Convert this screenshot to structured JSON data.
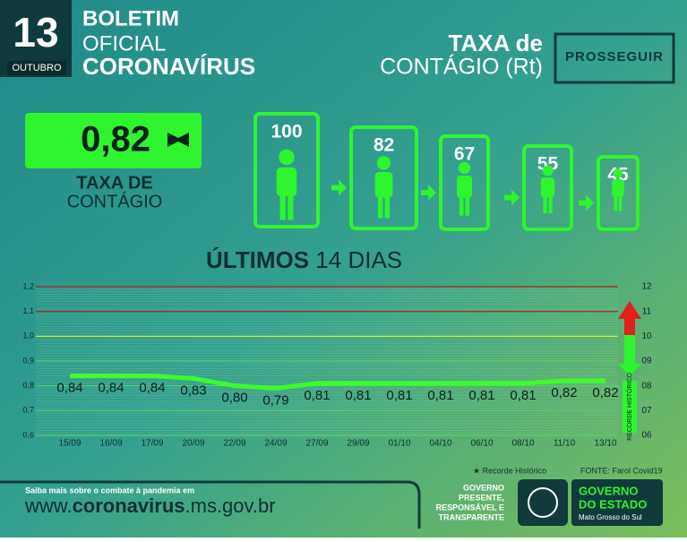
{
  "header": {
    "day": "13",
    "month": "OUTUBRO",
    "line1": "BOLETIM",
    "line2": "OFICIAL",
    "line3": "CORONAVÍRUS",
    "topic1": "TAXA de",
    "topic2": "CONTÁGIO (Rt)",
    "brand": "PROSSEGUIR"
  },
  "rate": {
    "value": "0,82",
    "label1": "TAXA DE",
    "label2": "CONTÁGIO"
  },
  "chain": [
    "100",
    "82",
    "67",
    "55",
    "45"
  ],
  "chart_data": {
    "type": "line",
    "title_bold": "ÚLTIMOS",
    "title_rest": "14 DIAS",
    "categories": [
      "15/09",
      "16/09",
      "17/09",
      "20/09",
      "22/09",
      "24/09",
      "27/09",
      "29/09",
      "01/10",
      "04/10",
      "06/10",
      "08/10",
      "11/10",
      "13/10"
    ],
    "series": [
      {
        "name": "Rt",
        "color": "#3dfc2a",
        "values": [
          0.84,
          0.84,
          0.84,
          0.83,
          0.8,
          0.79,
          0.81,
          0.81,
          0.81,
          0.81,
          0.81,
          0.81,
          0.82,
          0.82
        ],
        "value_labels": [
          "0,84",
          "0,84",
          "0,84",
          "0,83",
          "0,80",
          "0,79",
          "0,81",
          "0,81",
          "0,81",
          "0,81",
          "0,81",
          "0,81",
          "0,82",
          "0,82"
        ]
      }
    ],
    "ylim": [
      0.6,
      1.2
    ],
    "yticks": [
      {
        "value": 0.6,
        "label": "0,6"
      },
      {
        "value": 0.7,
        "label": "0,7"
      },
      {
        "value": 0.8,
        "label": "0,8"
      },
      {
        "value": 0.9,
        "label": "0,9"
      },
      {
        "value": 1.0,
        "label": "1,0"
      },
      {
        "value": 1.1,
        "label": "1,1"
      },
      {
        "value": 1.2,
        "label": "1,2"
      }
    ],
    "y2lim": [
      0.6,
      1.2
    ],
    "y2ticks": [
      {
        "value": 0.6,
        "label": "06"
      },
      {
        "value": 0.7,
        "label": "07"
      },
      {
        "value": 0.8,
        "label": "08"
      },
      {
        "value": 0.9,
        "label": "09"
      },
      {
        "value": 1.0,
        "label": "10"
      },
      {
        "value": 1.1,
        "label": "11"
      },
      {
        "value": 1.2,
        "label": "12"
      }
    ],
    "grid_colors": [
      "#5fd06a",
      "#5fd06a",
      "#5fd06a",
      "#5fd06a",
      "#e6f23a",
      "#b3211c",
      "#b3211c"
    ],
    "record_label": "RECORDE HISTÓRICO"
  },
  "footer": {
    "legend": "★ Recorde Histórico",
    "source": "FONTE: Farol Covid19",
    "more": "Saiba mais sobre o combate à pandemia em",
    "url_a": "www.",
    "url_b": "coronavirus",
    "url_c": ".ms.gov.br",
    "motto": [
      "GOVERNO",
      "PRESENTE,",
      "RESPONSÁVEL E",
      "TRANSPARENTE"
    ],
    "gov1": "GOVERNO",
    "gov2": "DO ESTADO",
    "gov3": "Mato Grosso do Sul"
  }
}
